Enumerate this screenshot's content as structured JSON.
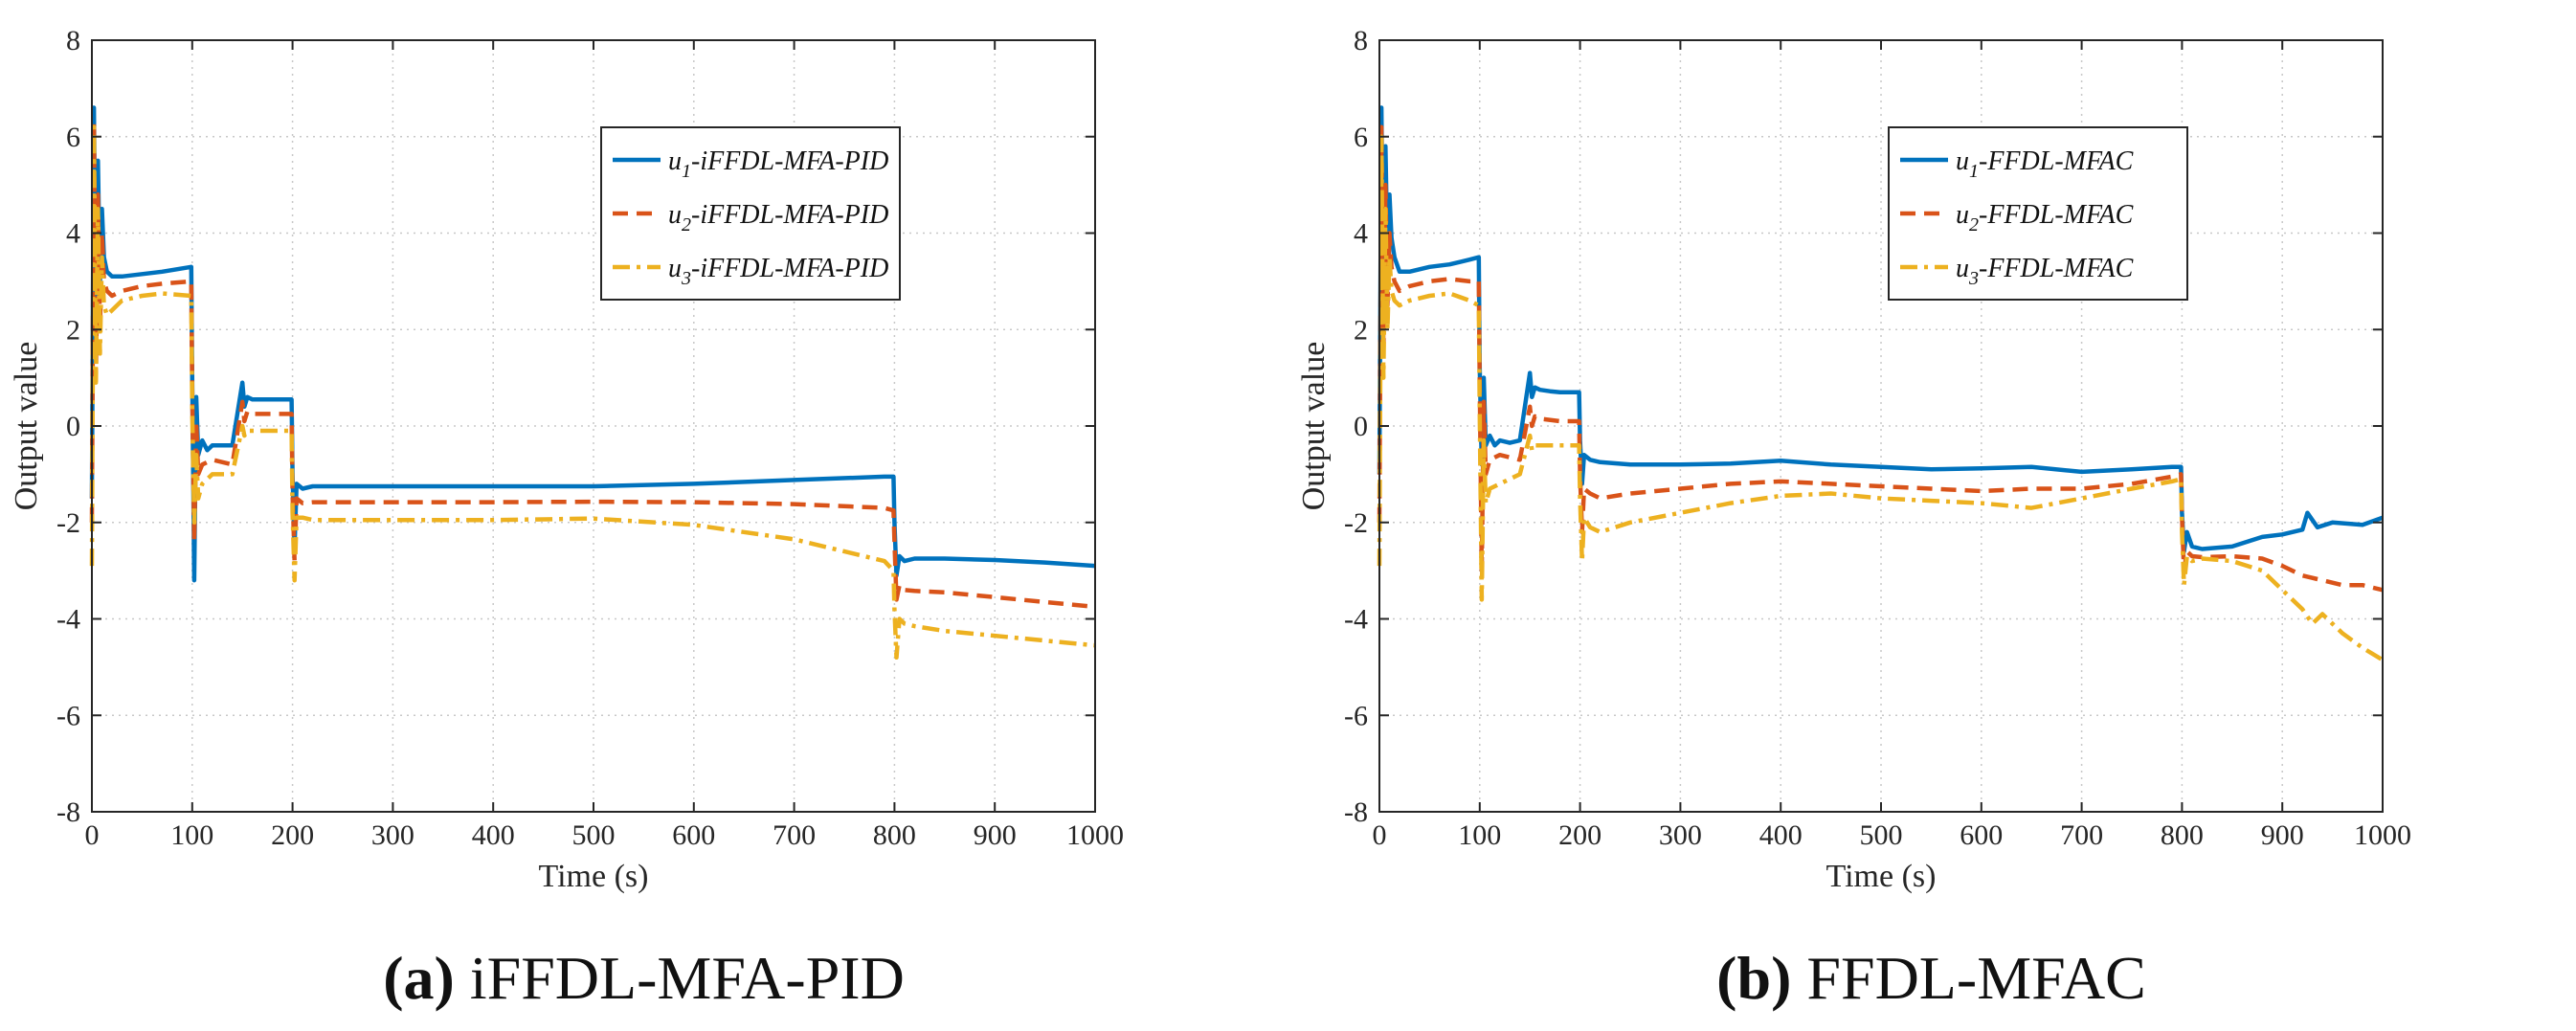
{
  "chart_data": [
    {
      "type": "line",
      "xlabel": "Time  (s)",
      "ylabel": "Output value",
      "xlim": [
        0,
        1000
      ],
      "ylim": [
        -8,
        8
      ],
      "xticks": [
        0,
        100,
        200,
        300,
        400,
        500,
        600,
        700,
        800,
        900,
        1000
      ],
      "yticks": [
        -8,
        -6,
        -4,
        -2,
        0,
        2,
        4,
        6,
        8
      ],
      "xtick_labels": [
        "0",
        "100",
        "200",
        "300",
        "400",
        "500",
        "600",
        "700",
        "800",
        "900",
        "1000"
      ],
      "ytick_labels": [
        "-8",
        "-6",
        "-4",
        "-2",
        "0",
        "2",
        "4",
        "6",
        "8"
      ],
      "grid": true,
      "legend_position": "top-right",
      "caption_tag": "(a)",
      "caption_text": " iFFDL-MFA-PID",
      "series": [
        {
          "name": "u1-iFFDL-MFA-PID",
          "legend_sub": "1",
          "legend_suffix": "-iFFDL-MFA-PID",
          "color": "#0072BD",
          "dash": "solid",
          "x": [
            0,
            2,
            4,
            6,
            8,
            10,
            12,
            15,
            20,
            30,
            50,
            70,
            99,
            100,
            102,
            104,
            106,
            110,
            115,
            120,
            130,
            140,
            150,
            152,
            155,
            160,
            170,
            180,
            199,
            200,
            202,
            204,
            210,
            220,
            300,
            400,
            500,
            600,
            700,
            790,
            799,
            800,
            802,
            805,
            810,
            820,
            850,
            900,
            950,
            1000
          ],
          "y": [
            -1.5,
            6.6,
            2.0,
            5.5,
            3.0,
            4.5,
            3.5,
            3.2,
            3.1,
            3.1,
            3.15,
            3.2,
            3.3,
            1.0,
            -3.2,
            0.6,
            -0.6,
            -0.3,
            -0.5,
            -0.4,
            -0.4,
            -0.4,
            0.9,
            0.4,
            0.6,
            0.55,
            0.55,
            0.55,
            0.55,
            -1.0,
            -2.5,
            -1.2,
            -1.3,
            -1.25,
            -1.25,
            -1.25,
            -1.25,
            -1.2,
            -1.12,
            -1.05,
            -1.05,
            -2.0,
            -3.1,
            -2.7,
            -2.8,
            -2.75,
            -2.75,
            -2.78,
            -2.83,
            -2.9
          ]
        },
        {
          "name": "u2-iFFDL-MFA-PID",
          "legend_sub": "2",
          "legend_suffix": "-iFFDL-MFA-PID",
          "color": "#D95319",
          "dash": "dashed",
          "x": [
            0,
            2,
            4,
            6,
            8,
            10,
            12,
            15,
            20,
            30,
            50,
            70,
            99,
            100,
            102,
            104,
            106,
            110,
            120,
            140,
            150,
            152,
            155,
            160,
            180,
            199,
            200,
            202,
            204,
            210,
            220,
            300,
            400,
            500,
            600,
            700,
            790,
            799,
            800,
            802,
            805,
            810,
            820,
            850,
            900,
            950,
            1000
          ],
          "y": [
            -2.0,
            6.3,
            1.0,
            4.8,
            2.0,
            4.0,
            3.0,
            2.8,
            2.7,
            2.8,
            2.9,
            2.95,
            3.0,
            0.7,
            -2.4,
            0.1,
            -1.0,
            -0.8,
            -0.7,
            -0.8,
            0.5,
            0.1,
            0.3,
            0.25,
            0.25,
            0.25,
            -1.4,
            -2.8,
            -1.5,
            -1.6,
            -1.58,
            -1.58,
            -1.58,
            -1.57,
            -1.58,
            -1.62,
            -1.7,
            -1.75,
            -2.4,
            -3.6,
            -3.3,
            -3.4,
            -3.42,
            -3.45,
            -3.55,
            -3.65,
            -3.75
          ]
        },
        {
          "name": "u3-iFFDL-MFA-PID",
          "legend_sub": "3",
          "legend_suffix": "-iFFDL-MFA-PID",
          "color": "#EDB120",
          "dash": "dashdot",
          "x": [
            0,
            2,
            4,
            6,
            8,
            10,
            12,
            15,
            20,
            30,
            50,
            70,
            99,
            100,
            102,
            104,
            106,
            110,
            120,
            140,
            150,
            152,
            155,
            160,
            180,
            199,
            200,
            202,
            204,
            210,
            220,
            300,
            400,
            500,
            600,
            700,
            790,
            799,
            800,
            802,
            805,
            810,
            820,
            850,
            900,
            950,
            1000
          ],
          "y": [
            -2.9,
            6.2,
            0.9,
            4.5,
            1.5,
            3.5,
            2.5,
            2.3,
            2.4,
            2.6,
            2.7,
            2.75,
            2.7,
            0.3,
            -2.0,
            -0.6,
            -1.5,
            -1.2,
            -1.0,
            -1.0,
            0.0,
            -0.2,
            -0.1,
            -0.1,
            -0.1,
            -0.1,
            -1.8,
            -3.2,
            -1.9,
            -1.9,
            -1.95,
            -1.95,
            -1.95,
            -1.92,
            -2.05,
            -2.35,
            -2.8,
            -3.0,
            -3.8,
            -4.8,
            -4.0,
            -4.1,
            -4.15,
            -4.25,
            -4.35,
            -4.45,
            -4.55
          ]
        }
      ]
    },
    {
      "type": "line",
      "xlabel": "Time  (s)",
      "ylabel": "Output value",
      "xlim": [
        0,
        1000
      ],
      "ylim": [
        -8,
        8
      ],
      "xticks": [
        0,
        100,
        200,
        300,
        400,
        500,
        600,
        700,
        800,
        900,
        1000
      ],
      "yticks": [
        -8,
        -6,
        -4,
        -2,
        0,
        2,
        4,
        6,
        8
      ],
      "xtick_labels": [
        "0",
        "100",
        "200",
        "300",
        "400",
        "500",
        "600",
        "700",
        "800",
        "900",
        "1000"
      ],
      "ytick_labels": [
        "-8",
        "-6",
        "-4",
        "-2",
        "0",
        "2",
        "4",
        "6",
        "8"
      ],
      "grid": true,
      "legend_position": "top-right",
      "caption_tag": "(b)",
      "caption_text": " FFDL-MFAC",
      "series": [
        {
          "name": "u1-FFDL-MFAC",
          "legend_sub": "1",
          "legend_suffix": "-FFDL-MFAC",
          "color": "#0072BD",
          "dash": "solid",
          "x": [
            0,
            2,
            4,
            6,
            8,
            10,
            12,
            15,
            20,
            30,
            50,
            70,
            90,
            99,
            100,
            102,
            104,
            106,
            110,
            115,
            120,
            130,
            140,
            150,
            152,
            155,
            160,
            170,
            180,
            199,
            200,
            202,
            204,
            210,
            220,
            250,
            300,
            350,
            400,
            450,
            500,
            550,
            600,
            650,
            700,
            750,
            790,
            799,
            800,
            802,
            805,
            810,
            820,
            850,
            880,
            900,
            920,
            925,
            935,
            950,
            980,
            1000
          ],
          "y": [
            -1.0,
            6.6,
            2.5,
            5.8,
            3.5,
            4.8,
            3.9,
            3.5,
            3.2,
            3.2,
            3.3,
            3.35,
            3.45,
            3.5,
            1.2,
            -0.8,
            1.0,
            -0.4,
            -0.2,
            -0.4,
            -0.3,
            -0.35,
            -0.3,
            1.1,
            0.6,
            0.8,
            0.75,
            0.72,
            0.7,
            0.7,
            -0.3,
            -1.2,
            -0.6,
            -0.7,
            -0.75,
            -0.8,
            -0.8,
            -0.78,
            -0.72,
            -0.8,
            -0.85,
            -0.9,
            -0.88,
            -0.85,
            -0.95,
            -0.9,
            -0.85,
            -0.85,
            -1.8,
            -2.6,
            -2.2,
            -2.5,
            -2.55,
            -2.5,
            -2.3,
            -2.25,
            -2.15,
            -1.8,
            -2.1,
            -2.0,
            -2.05,
            -1.9
          ]
        },
        {
          "name": "u2-FFDL-MFAC",
          "legend_sub": "2",
          "legend_suffix": "-FFDL-MFAC",
          "color": "#D95319",
          "dash": "dashed",
          "x": [
            0,
            2,
            4,
            6,
            8,
            10,
            12,
            15,
            20,
            30,
            50,
            70,
            90,
            99,
            100,
            102,
            104,
            106,
            110,
            120,
            140,
            150,
            152,
            155,
            160,
            180,
            199,
            200,
            202,
            204,
            210,
            220,
            250,
            300,
            350,
            400,
            450,
            500,
            550,
            600,
            650,
            700,
            750,
            790,
            799,
            800,
            802,
            805,
            810,
            820,
            850,
            880,
            900,
            920,
            940,
            960,
            980,
            1000
          ],
          "y": [
            -2.0,
            6.2,
            1.5,
            5.0,
            2.5,
            4.0,
            3.3,
            3.0,
            2.8,
            2.9,
            3.0,
            3.05,
            3.0,
            3.0,
            0.8,
            -3.0,
            0.5,
            -1.0,
            -0.7,
            -0.6,
            -0.7,
            0.4,
            0.0,
            0.2,
            0.15,
            0.1,
            0.1,
            -1.0,
            -2.2,
            -1.3,
            -1.4,
            -1.5,
            -1.4,
            -1.3,
            -1.2,
            -1.15,
            -1.2,
            -1.25,
            -1.3,
            -1.35,
            -1.3,
            -1.3,
            -1.2,
            -1.05,
            -1.0,
            -1.9,
            -3.0,
            -2.6,
            -2.7,
            -2.72,
            -2.7,
            -2.75,
            -2.9,
            -3.1,
            -3.2,
            -3.3,
            -3.3,
            -3.4
          ]
        },
        {
          "name": "u3-FFDL-MFAC",
          "legend_sub": "3",
          "legend_suffix": "-FFDL-MFAC",
          "color": "#EDB120",
          "dash": "dashdot",
          "x": [
            0,
            2,
            4,
            6,
            8,
            10,
            12,
            15,
            20,
            30,
            50,
            70,
            90,
            99,
            100,
            102,
            104,
            106,
            110,
            120,
            140,
            150,
            152,
            155,
            160,
            180,
            199,
            200,
            202,
            204,
            210,
            220,
            250,
            300,
            350,
            400,
            450,
            500,
            550,
            600,
            650,
            700,
            750,
            790,
            799,
            800,
            802,
            805,
            810,
            820,
            850,
            880,
            900,
            920,
            930,
            940,
            960,
            980,
            1000
          ],
          "y": [
            -2.9,
            6.0,
            1.0,
            4.5,
            2.0,
            3.5,
            2.8,
            2.6,
            2.5,
            2.6,
            2.7,
            2.75,
            2.6,
            2.5,
            0.2,
            -3.6,
            -0.3,
            -1.6,
            -1.3,
            -1.2,
            -1.0,
            -0.2,
            -0.5,
            -0.4,
            -0.4,
            -0.4,
            -0.4,
            -1.5,
            -2.8,
            -1.9,
            -2.1,
            -2.2,
            -2.0,
            -1.8,
            -1.6,
            -1.45,
            -1.4,
            -1.5,
            -1.55,
            -1.6,
            -1.7,
            -1.5,
            -1.3,
            -1.15,
            -1.1,
            -2.2,
            -3.3,
            -2.7,
            -2.8,
            -2.75,
            -2.8,
            -3.0,
            -3.4,
            -3.8,
            -4.1,
            -3.9,
            -4.3,
            -4.6,
            -4.85
          ]
        }
      ]
    }
  ]
}
